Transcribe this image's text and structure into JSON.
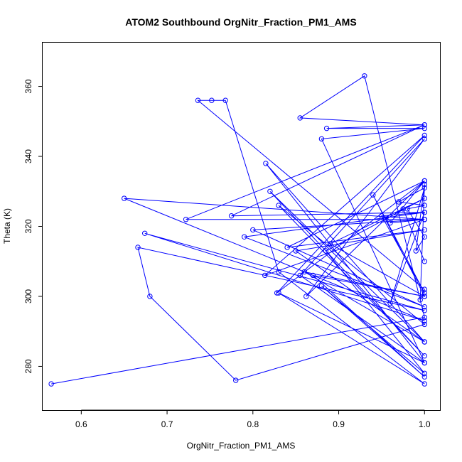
{
  "chart_data": {
    "type": "line",
    "title": "ATOM2 Southbound OrgNitr_Fraction_PM1_AMS",
    "xlabel": "OrgNitr_Fraction_PM1_AMS",
    "ylabel": "Theta (K)",
    "xlim": [
      0.555,
      1.018
    ],
    "ylim": [
      267.5,
      372.5
    ],
    "xticks": [
      0.6,
      0.7,
      0.8,
      0.9,
      1.0
    ],
    "xtick_labels": [
      "0.6",
      "0.7",
      "0.8",
      "0.9",
      "1.0"
    ],
    "yticks": [
      280,
      300,
      320,
      340,
      360
    ],
    "ytick_labels": [
      "280",
      "300",
      "320",
      "340",
      "360"
    ],
    "series": [
      {
        "name": "Southbound",
        "color": "#0000ff",
        "marker": "open-circle",
        "x": [
          0.565,
          1.0,
          0.93,
          0.855,
          1.0,
          0.886,
          1.0,
          0.88,
          1.0,
          0.815,
          1.0,
          0.82,
          1.0,
          0.83,
          1.0,
          0.78,
          0.68,
          0.666,
          1.0,
          0.674,
          1.0,
          0.65,
          1.0,
          0.722,
          1.0,
          0.775,
          1.0,
          0.79,
          1.0,
          0.8,
          1.0,
          0.814,
          1.0,
          0.828,
          1.0,
          0.84,
          1.0,
          0.85,
          1.0,
          0.86,
          1.0,
          0.87,
          1.0,
          0.88,
          1.0,
          0.885,
          1.0,
          0.89,
          1.0,
          0.94,
          1.0,
          0.95,
          1.0,
          0.96,
          1.0,
          0.97,
          1.0,
          0.98,
          1.0,
          0.99,
          1.0,
          0.995,
          1.0,
          0.736,
          0.752,
          0.768,
          0.83,
          1.0,
          0.83,
          1.0,
          0.855,
          1.0,
          0.862,
          1.0,
          0.96,
          1.0,
          0.955,
          0.975,
          1.0
        ],
        "y": [
          275,
          294,
          363,
          351,
          349,
          348,
          348,
          345,
          281,
          338,
          287,
          330,
          283,
          326,
          292,
          276,
          300,
          314,
          296,
          318,
          293,
          328,
          322,
          322,
          349,
          323,
          324,
          317,
          297,
          319,
          322,
          306,
          346,
          301,
          333,
          314,
          319,
          313,
          287,
          307,
          300,
          306,
          277,
          303,
          278,
          313,
          328,
          315,
          300,
          329,
          301,
          323,
          324,
          298,
          331,
          327,
          326,
          325,
          317,
          313,
          332,
          299,
          302,
          356,
          356,
          356,
          307,
          275,
          301,
          281,
          306,
          345,
          300,
          333,
          321,
          322,
          322,
          325,
          310
        ]
      }
    ]
  }
}
